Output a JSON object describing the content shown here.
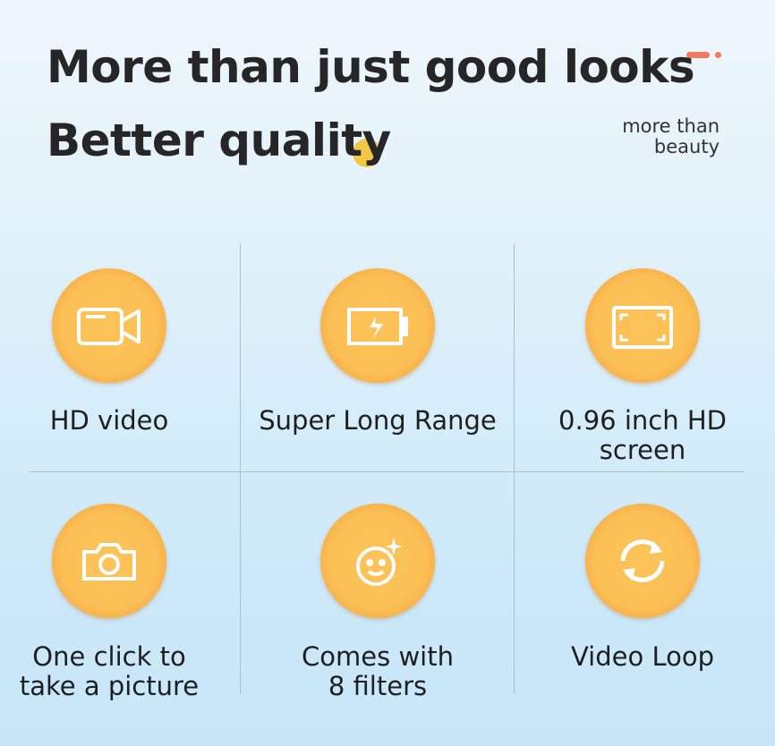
{
  "header": {
    "title_line1": "More than just good looks",
    "title_line2": "Better quality",
    "subtitle": "more than beauty",
    "subtitle_line1": "more than",
    "subtitle_line2": "beauty",
    "accent_color": "#f07c5f",
    "highlight_color": "#f2c744"
  },
  "features": [
    {
      "label": "HD video",
      "icon": "video-camera-icon"
    },
    {
      "label": "Super Long Range",
      "icon": "battery-charging-icon"
    },
    {
      "label_line1": "0.96 inch HD",
      "label_line2": "screen",
      "icon": "screen-frame-icon"
    },
    {
      "label_line1": "One click to",
      "label_line2": "take a picture",
      "icon": "camera-icon"
    },
    {
      "label_line1": "Comes with",
      "label_line2": "8 filters",
      "icon": "smiley-sparkle-icon"
    },
    {
      "label": "Video Loop",
      "icon": "loop-arrows-icon"
    }
  ],
  "circle_color": "#fbbf55"
}
